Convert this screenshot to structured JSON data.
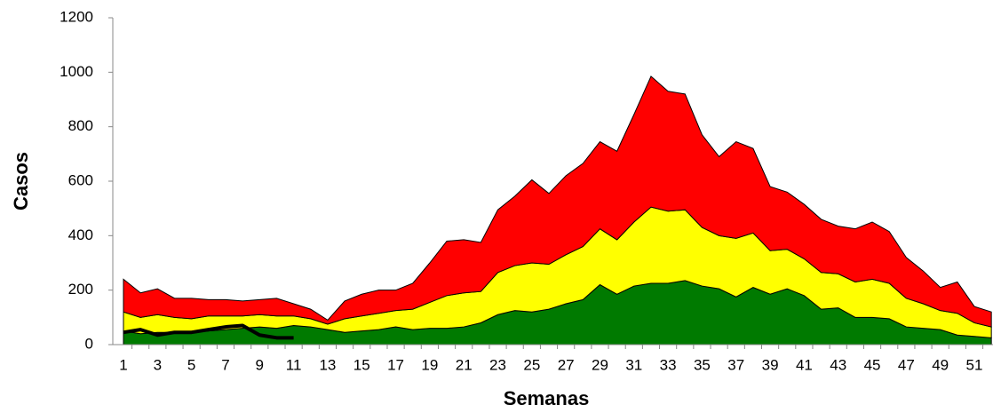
{
  "chart_data": {
    "type": "area",
    "y_label": "Casos",
    "x_label": "Semanas",
    "categories": [
      "1",
      null,
      "3",
      null,
      "5",
      null,
      "7",
      null,
      "9",
      null,
      "11",
      null,
      "13",
      null,
      "15",
      null,
      "17",
      null,
      "19",
      null,
      "21",
      null,
      "23",
      null,
      "25",
      null,
      "27",
      null,
      "29",
      null,
      "31",
      null,
      "33",
      null,
      "35",
      null,
      "37",
      null,
      "39",
      null,
      "41",
      null,
      "43",
      null,
      "45",
      null,
      "47",
      null,
      "49",
      null,
      "51",
      null
    ],
    "series": [
      {
        "color": "#007a00",
        "values": [
          50,
          40,
          45,
          45,
          45,
          50,
          55,
          60,
          65,
          60,
          70,
          65,
          55,
          45,
          50,
          55,
          65,
          55,
          60,
          60,
          65,
          80,
          110,
          125,
          120,
          130,
          150,
          165,
          220,
          185,
          215,
          225,
          225,
          235,
          215,
          205,
          175,
          210,
          185,
          205,
          180,
          130,
          135,
          100,
          100,
          95,
          65,
          60,
          55,
          35,
          30,
          25
        ]
      },
      {
        "color": "#ffff00",
        "values": [
          70,
          60,
          65,
          55,
          50,
          55,
          50,
          45,
          45,
          45,
          35,
          30,
          20,
          50,
          55,
          60,
          60,
          75,
          95,
          120,
          125,
          115,
          155,
          165,
          180,
          165,
          180,
          195,
          205,
          200,
          235,
          280,
          265,
          260,
          215,
          195,
          215,
          200,
          160,
          145,
          135,
          135,
          125,
          130,
          140,
          130,
          105,
          90,
          70,
          80,
          50,
          40
        ]
      },
      {
        "color": "#ff0000",
        "values": [
          120,
          90,
          95,
          70,
          75,
          60,
          60,
          55,
          55,
          65,
          45,
          35,
          15,
          65,
          80,
          85,
          75,
          95,
          145,
          200,
          195,
          180,
          230,
          255,
          305,
          260,
          290,
          305,
          320,
          325,
          395,
          480,
          440,
          425,
          340,
          290,
          355,
          310,
          235,
          210,
          200,
          195,
          175,
          195,
          210,
          190,
          150,
          120,
          85,
          115,
          60,
          55
        ]
      },
      {
        "type": "line",
        "color": "#000000",
        "values": [
          45,
          55,
          35,
          45,
          45,
          55,
          65,
          70,
          35,
          25,
          25,
          null,
          null,
          null,
          null,
          null,
          null,
          null,
          null,
          null,
          null,
          null,
          null,
          null,
          null,
          null,
          null,
          null,
          null,
          null,
          null,
          null,
          null,
          null,
          null,
          null,
          null,
          null,
          null,
          null,
          null,
          null,
          null,
          null,
          null,
          null,
          null,
          null,
          null,
          null,
          null,
          null
        ]
      }
    ],
    "ylim": [
      0,
      1200
    ],
    "yticks": [
      0,
      200,
      400,
      600,
      800,
      1000,
      1200
    ],
    "grid": false
  }
}
